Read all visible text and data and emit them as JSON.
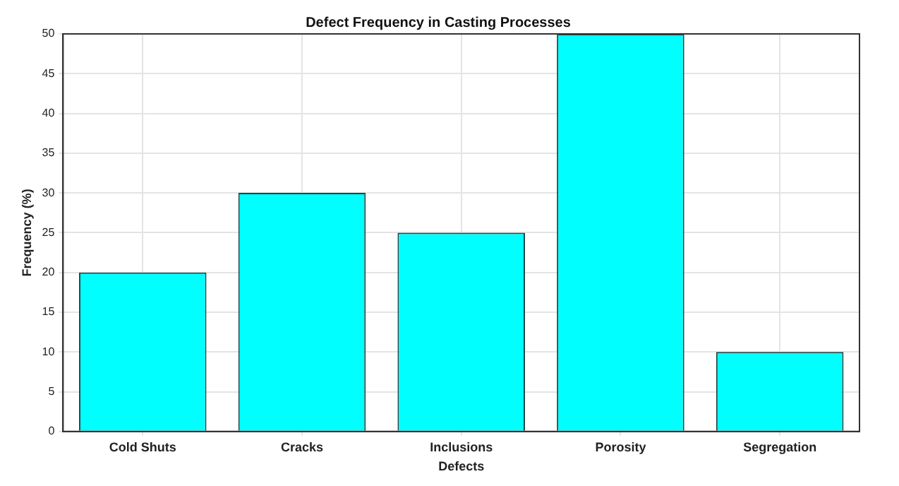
{
  "chart_data": {
    "type": "bar",
    "title": "Defect Frequency in Casting Processes",
    "xlabel": "Defects",
    "ylabel": "Frequency (%)",
    "categories": [
      "Cold Shuts",
      "Cracks",
      "Inclusions",
      "Porosity",
      "Segregation"
    ],
    "values": [
      20,
      30,
      25,
      50,
      10
    ],
    "color": "#00ffff",
    "ylim": [
      0,
      50
    ],
    "yticks": [
      0,
      5,
      10,
      15,
      20,
      25,
      30,
      35,
      40,
      45,
      50
    ],
    "grid": true,
    "legend": false
  }
}
